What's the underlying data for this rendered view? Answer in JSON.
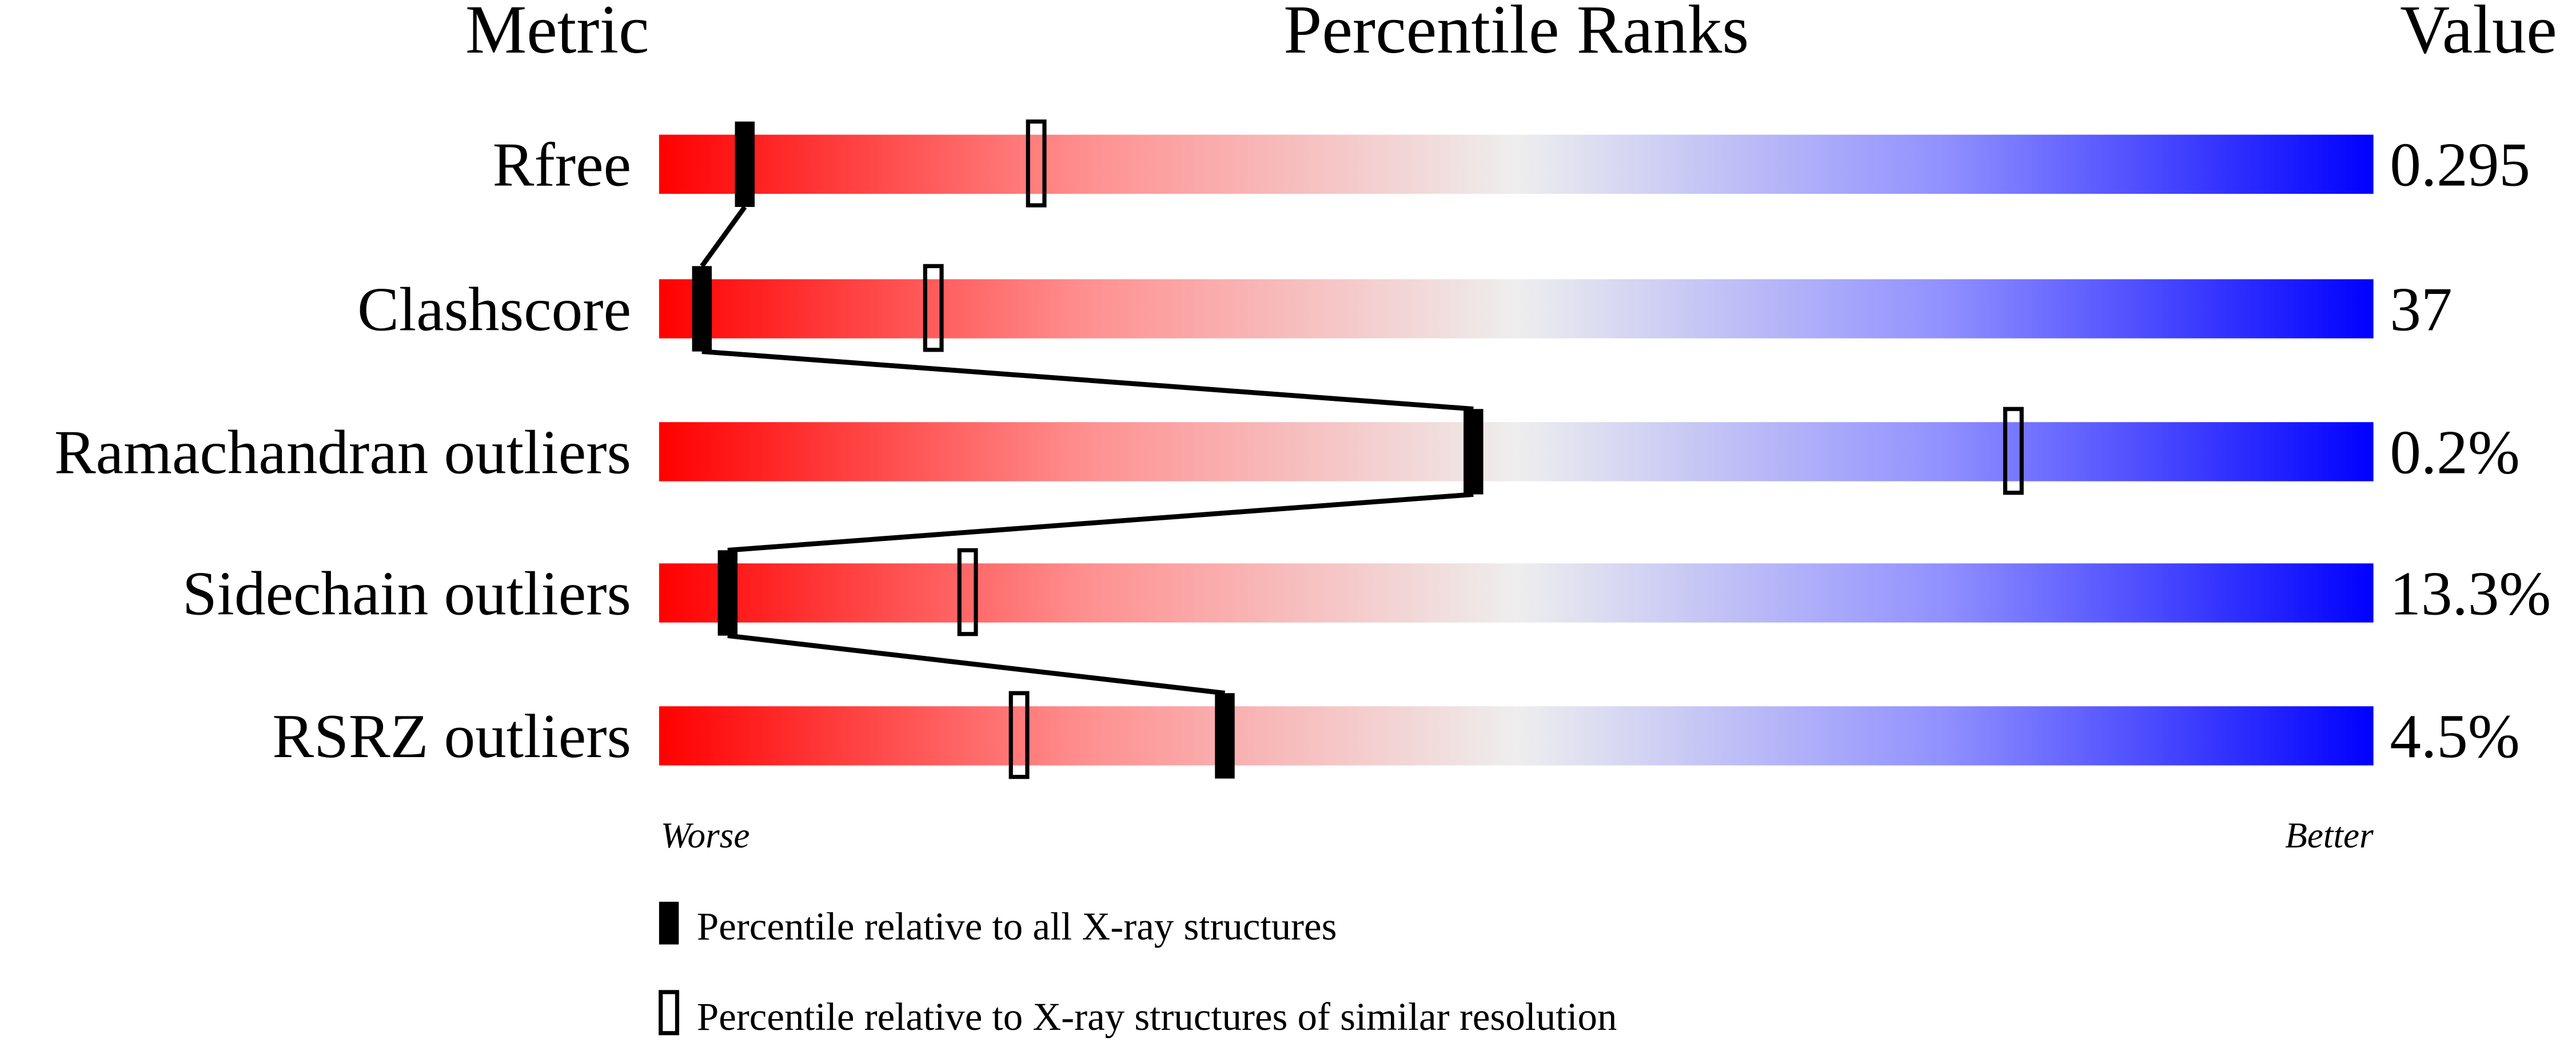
{
  "chart_data": {
    "type": "percentile-slider",
    "headers": {
      "metric": "Metric",
      "ranks": "Percentile Ranks",
      "value": "Value"
    },
    "xlim": [
      0,
      100
    ],
    "axis_labels": {
      "left": "Worse",
      "right": "Better"
    },
    "gradient_colors": [
      "#ff0000",
      "#eeeeee",
      "#0000ff"
    ],
    "metrics": [
      {
        "name": "Rfree",
        "value": "0.295",
        "percentile_all": 5,
        "percentile_similar": 22
      },
      {
        "name": "Clashscore",
        "value": "37",
        "percentile_all": 2.5,
        "percentile_similar": 16
      },
      {
        "name": "Ramachandran outliers",
        "value": "0.2%",
        "percentile_all": 47.5,
        "percentile_similar": 79
      },
      {
        "name": "Sidechain outliers",
        "value": "13.3%",
        "percentile_all": 4,
        "percentile_similar": 18
      },
      {
        "name": "RSRZ outliers",
        "value": "4.5%",
        "percentile_all": 33,
        "percentile_similar": 21
      }
    ],
    "legend": {
      "all": "Percentile relative to all X-ray structures",
      "similar": "Percentile relative to X-ray structures of similar resolution"
    }
  }
}
